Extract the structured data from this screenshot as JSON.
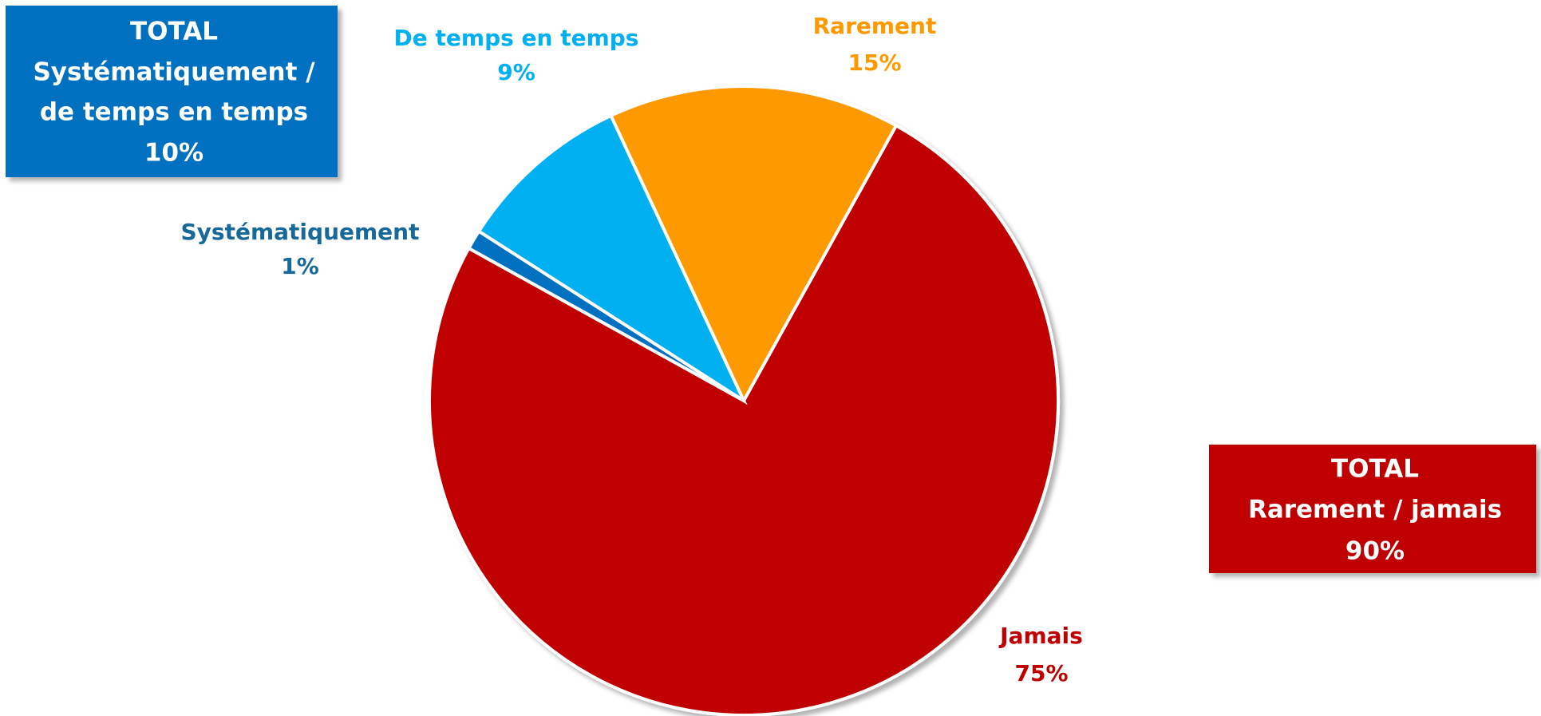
{
  "chart_data": {
    "type": "pie",
    "categories": [
      "Rarement",
      "Jamais",
      "Systématiquement",
      "De temps en temps"
    ],
    "values": [
      15,
      75,
      1,
      9
    ],
    "value_labels": [
      "15%",
      "75%",
      "1%",
      "9%"
    ],
    "colors": [
      "#ff9900",
      "#c00000",
      "#0070c0",
      "#00b0f0"
    ],
    "label_colors": [
      "#ff9900",
      "#c00000",
      "#17699a",
      "#00b0f0"
    ],
    "annotations": [
      {
        "lines": [
          "TOTAL",
          "Systématiquement /",
          "de temps en temps",
          "10%"
        ],
        "color": "#0070c0"
      },
      {
        "lines": [
          "TOTAL",
          "Rarement / jamais",
          "90%"
        ],
        "color": "#c00000"
      }
    ]
  }
}
